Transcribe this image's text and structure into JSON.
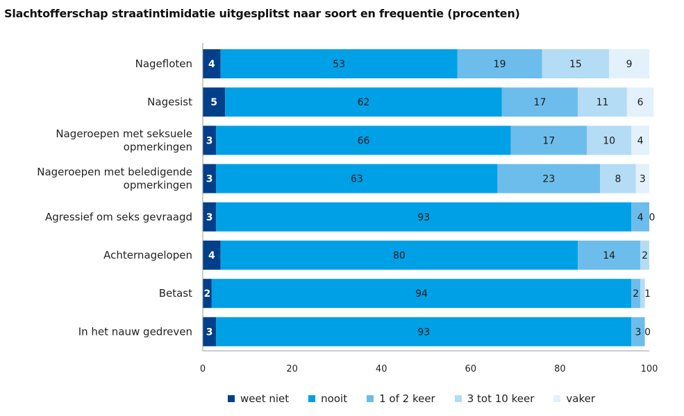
{
  "chart_data": {
    "type": "bar",
    "orientation": "horizontal",
    "stacked": true,
    "title": "Slachtofferschap straatintimidatie uitgesplitst naar soort en frequentie (procenten)",
    "categories": [
      "Nagefloten",
      "Nagesist",
      "Nageroepen met seksuele opmerkingen",
      "Nageroepen met beledigende opmerkingen",
      "Agressief om seks gevraagd",
      "Achternagelopen",
      "Betast",
      "In het nauw gedreven"
    ],
    "category_lines": [
      [
        "Nagefloten"
      ],
      [
        "Nagesist"
      ],
      [
        "Nageroepen met seksuele",
        "opmerkingen"
      ],
      [
        "Nageroepen met beledigende",
        "opmerkingen"
      ],
      [
        "Agressief om seks gevraagd"
      ],
      [
        "Achternagelopen"
      ],
      [
        "Betast"
      ],
      [
        "In het nauw gedreven"
      ]
    ],
    "series": [
      {
        "name": "weet niet",
        "color": "#003f8a",
        "label_color": "#ffffff",
        "values": [
          4,
          5,
          3,
          3,
          3,
          4,
          2,
          3
        ]
      },
      {
        "name": "nooit",
        "color": "#00a0e6",
        "label_color": "#1a1a1a",
        "values": [
          53,
          62,
          66,
          63,
          93,
          80,
          94,
          93
        ]
      },
      {
        "name": "1 of 2 keer",
        "color": "#6cbdeb",
        "label_color": "#1a1a1a",
        "values": [
          19,
          17,
          17,
          23,
          4,
          14,
          2,
          3
        ]
      },
      {
        "name": "3 tot 10 keer",
        "color": "#b5dcf5",
        "label_color": "#1a1a1a",
        "values": [
          15,
          11,
          10,
          8,
          0,
          2,
          1,
          0
        ]
      },
      {
        "name": "vaker",
        "color": "#e2f1fb",
        "label_color": "#1a1a1a",
        "values": [
          9,
          6,
          4,
          3,
          null,
          null,
          null,
          null
        ]
      }
    ],
    "xlim": [
      0,
      100
    ],
    "xticks": [
      0,
      20,
      40,
      60,
      80,
      100
    ],
    "xlabel": "",
    "ylabel": "",
    "grid": false,
    "legend_position": "bottom"
  }
}
